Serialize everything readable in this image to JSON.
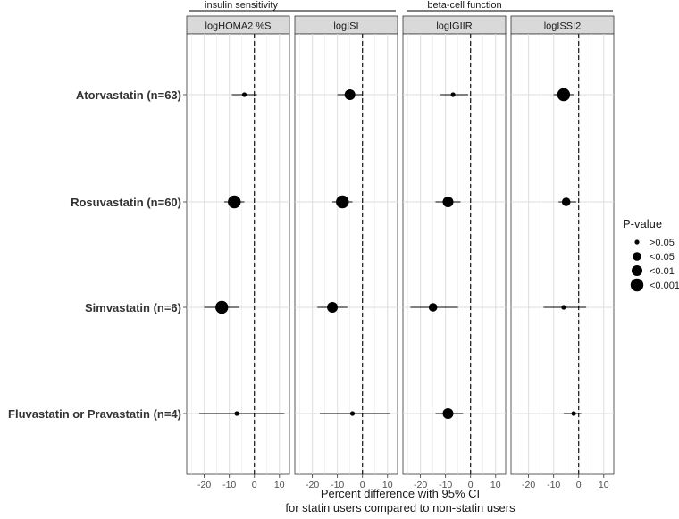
{
  "chart_data": {
    "type": "forest",
    "group_labels": [
      "insulin sensitivity",
      "beta-cell function"
    ],
    "panels": [
      "logHOMA2 %S",
      "logISI",
      "logIGIIR",
      "logISSI2"
    ],
    "rows": [
      "Atorvastatin (n=63)",
      "Rosuvastatin (n=60)",
      "Simvastatin (n=6)",
      "Fluvastatin or Pravastatin (n=4)"
    ],
    "xlim": [
      -27,
      14
    ],
    "xticks": [
      -20,
      -10,
      0,
      10
    ],
    "xtick_labels": [
      "-20",
      "-10",
      "0",
      "10"
    ],
    "reference_line": 0,
    "xlabel_line1": "Percent difference with 95% CI",
    "xlabel_line2": "for statin users compared to non-statin users",
    "legend_title": "P-value",
    "legend_items": [
      {
        "label": ">0.05",
        "level": 1
      },
      {
        "label": "<0.05",
        "level": 2
      },
      {
        "label": "<0.01",
        "level": 3
      },
      {
        "label": "<0.001",
        "level": 4
      }
    ],
    "estimates": [
      [
        {
          "est": -4,
          "lo": -9,
          "hi": 1,
          "p_level": 1
        },
        {
          "est": -5,
          "lo": -10,
          "hi": 0,
          "p_level": 3
        },
        {
          "est": -7,
          "lo": -12,
          "hi": -1,
          "p_level": 1
        },
        {
          "est": -6,
          "lo": -10,
          "hi": -2,
          "p_level": 4
        }
      ],
      [
        {
          "est": -8,
          "lo": -12,
          "hi": -4,
          "p_level": 4
        },
        {
          "est": -8,
          "lo": -12,
          "hi": -4,
          "p_level": 4
        },
        {
          "est": -9,
          "lo": -14,
          "hi": -4,
          "p_level": 3
        },
        {
          "est": -5,
          "lo": -8,
          "hi": -1,
          "p_level": 2
        }
      ],
      [
        {
          "est": -13,
          "lo": -20,
          "hi": -6,
          "p_level": 4
        },
        {
          "est": -12,
          "lo": -18,
          "hi": -6,
          "p_level": 3
        },
        {
          "est": -15,
          "lo": -24,
          "hi": -5,
          "p_level": 2
        },
        {
          "est": -6,
          "lo": -14,
          "hi": 3,
          "p_level": 1
        }
      ],
      [
        {
          "est": -7,
          "lo": -22,
          "hi": 12,
          "p_level": 1
        },
        {
          "est": -4,
          "lo": -17,
          "hi": 11,
          "p_level": 1
        },
        {
          "est": -9,
          "lo": -14,
          "hi": -3,
          "p_level": 3
        },
        {
          "est": -2,
          "lo": -6,
          "hi": 1,
          "p_level": 1
        }
      ]
    ]
  }
}
